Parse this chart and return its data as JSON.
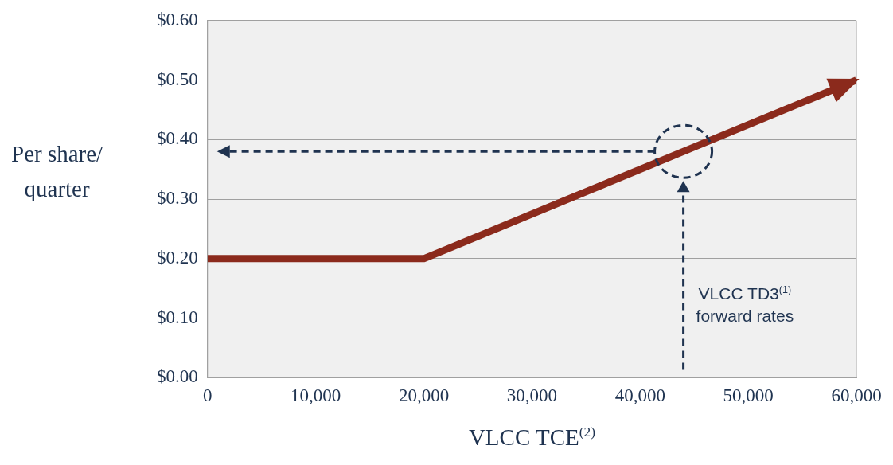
{
  "chart_data": {
    "type": "line",
    "xlabel": "VLCC TCE$^{(2)}$",
    "ylabel": "Per share/\nquarter",
    "x": [
      0,
      20000,
      60000
    ],
    "series": [
      {
        "color": "#8b2a1c",
        "values": [
          0.2,
          0.2,
          0.5
        ]
      }
    ],
    "xlim": [
      0,
      60000
    ],
    "xticks": [
      {
        "value": 0,
        "label": "0"
      },
      {
        "value": 10000,
        "label": "10,000"
      },
      {
        "value": 20000,
        "label": "20,000"
      },
      {
        "value": 30000,
        "label": "30,000"
      },
      {
        "value": 40000,
        "label": "40,000"
      },
      {
        "value": 50000,
        "label": "50,000"
      },
      {
        "value": 60000,
        "label": "60,000"
      }
    ],
    "ylim": [
      0,
      0.6
    ],
    "yticks": [
      {
        "value": 0,
        "label": "$0.00"
      },
      {
        "value": 0.1,
        "label": "$0.10"
      },
      {
        "value": 0.2,
        "label": "$0.20"
      },
      {
        "value": 0.3,
        "label": "$0.30"
      },
      {
        "value": 0.4,
        "label": "$0.40"
      },
      {
        "value": 0.5,
        "label": "$0.50"
      },
      {
        "value": 0.6,
        "label": "$0.60"
      }
    ],
    "grid": "y",
    "marker": "none",
    "line_style": "solid",
    "legend": false,
    "ref_lines": [
      {
        "axis": "x",
        "value": 44000,
        "label": "VLCC TD3$^{(1)}$\nforward rates",
        "color": "#1f3350",
        "line_style": "dashed"
      },
      {
        "axis": "y",
        "value": 0.38,
        "color": "#1f3350",
        "line_style": "dashed"
      }
    ]
  }
}
